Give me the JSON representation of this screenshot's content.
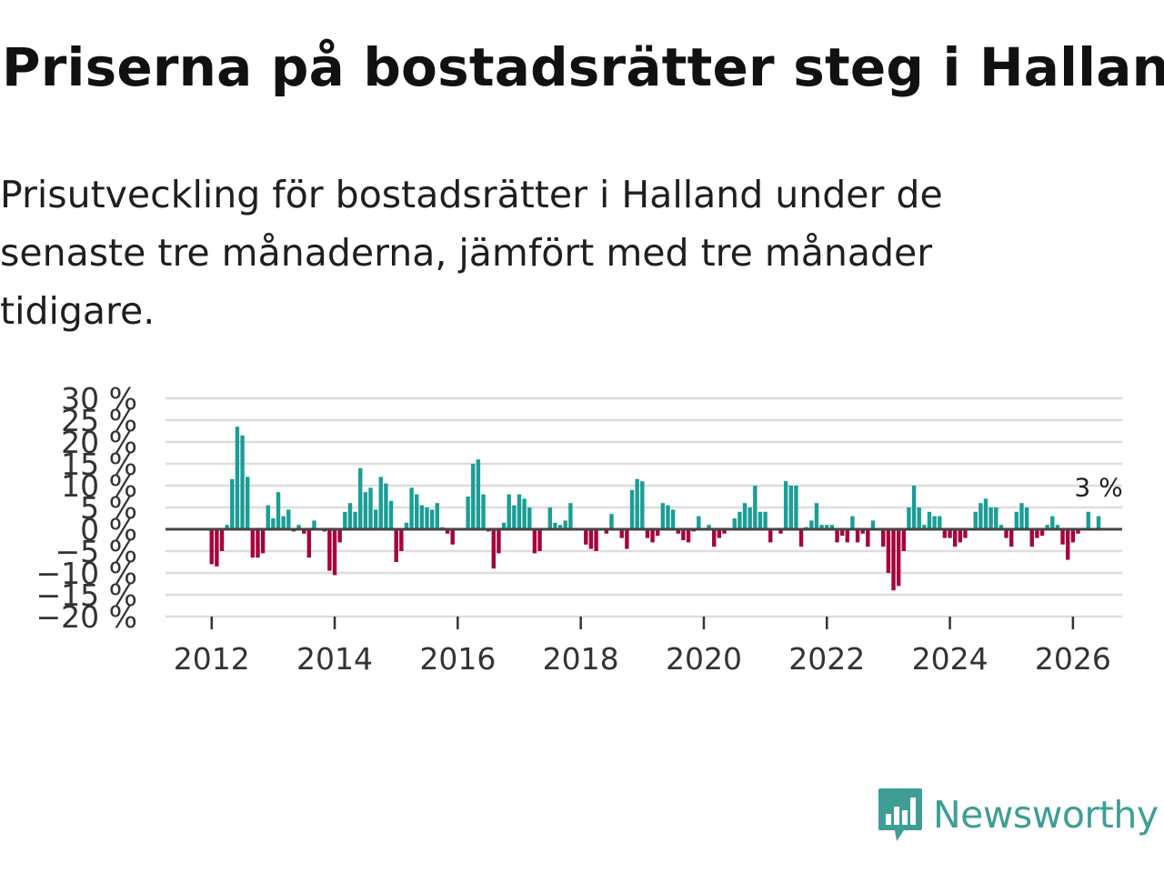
{
  "title": "Priserna på bostadsrätter steg i Halland",
  "subtitle": "Prisutveckling för bostadsrätter i Halland under de senaste tre månaderna, jämfört med tre månader tidigare.",
  "brand": {
    "name": "Newsworthy",
    "color": "#3e9e96",
    "logo_icon": "bar-chart-speech-bubble-icon"
  },
  "colors": {
    "positive": "#1a9e96",
    "negative": "#a8003c",
    "grid": "#dddddd",
    "zero_line": "#444444"
  },
  "chart_data": {
    "type": "bar",
    "title": "Priserna på bostadsrätter steg i Halland",
    "xlabel": "",
    "ylabel": "",
    "ylim": [
      -20,
      30
    ],
    "xlim": [
      2011.25,
      2026.8
    ],
    "y_ticks": [
      30,
      25,
      20,
      15,
      10,
      5,
      0,
      -5,
      -10,
      -15,
      -20
    ],
    "y_tick_labels": [
      "30 %",
      "25 %",
      "20 %",
      "15 %",
      "10 %",
      "5 %",
      "0 %",
      "−5 %",
      "−10 %",
      "−15 %",
      "−20 %"
    ],
    "x_ticks": [
      2012,
      2014,
      2016,
      2018,
      2020,
      2022,
      2024,
      2026
    ],
    "x_tick_labels": [
      "2012",
      "2014",
      "2016",
      "2018",
      "2020",
      "2022",
      "2024",
      "2026"
    ],
    "grid": true,
    "start": 2012.0,
    "step": 0.08333,
    "annotation": {
      "label": "3 %",
      "value": 3
    },
    "values": [
      -8,
      -8.5,
      -5,
      1,
      11.5,
      23.5,
      21.5,
      12,
      -6.5,
      -6.5,
      -5.5,
      5.5,
      2.5,
      8.5,
      3,
      4.5,
      -0.5,
      1,
      -1,
      -6.5,
      2,
      0,
      -0.5,
      -9.5,
      -10.5,
      -3,
      4,
      6,
      4,
      14,
      8.5,
      9.5,
      4.5,
      12,
      10.5,
      6.5,
      -7.5,
      -5,
      1.5,
      9.5,
      8,
      5.5,
      5,
      4.5,
      6,
      0.5,
      -1,
      -3.5,
      0,
      0,
      7.5,
      15,
      16,
      8,
      -0.5,
      -9,
      -5.5,
      1.5,
      8,
      5.5,
      8,
      7,
      5,
      -5.5,
      -5,
      0,
      5,
      1.5,
      1,
      2,
      6,
      0,
      0,
      -3.5,
      -4.5,
      -5,
      0,
      -1,
      3.5,
      0,
      -2,
      -4.5,
      9,
      11.5,
      11,
      -2,
      -3,
      -1.5,
      6,
      5.5,
      4.5,
      -1,
      -2.5,
      -3,
      -0.5,
      3,
      0,
      1,
      -4,
      -2,
      -1,
      0,
      2.5,
      4,
      6,
      5,
      10,
      4,
      4,
      -3,
      0,
      -1,
      11,
      10,
      10,
      -4,
      0.5,
      2,
      6,
      1,
      1,
      1,
      -3,
      -1.5,
      -3,
      3,
      -3,
      -1,
      -4,
      2,
      0,
      -4,
      -10,
      -14,
      -13,
      -5,
      5,
      10,
      5,
      1,
      4,
      3,
      3,
      -2,
      -2,
      -4,
      -3,
      -2,
      0,
      4,
      6,
      7,
      5,
      5,
      1,
      -2,
      -4,
      4,
      6,
      5,
      -4,
      -2,
      -1.5,
      1,
      3,
      1,
      -3.5,
      -7,
      -3,
      -1,
      0,
      4,
      0,
      3
    ]
  }
}
